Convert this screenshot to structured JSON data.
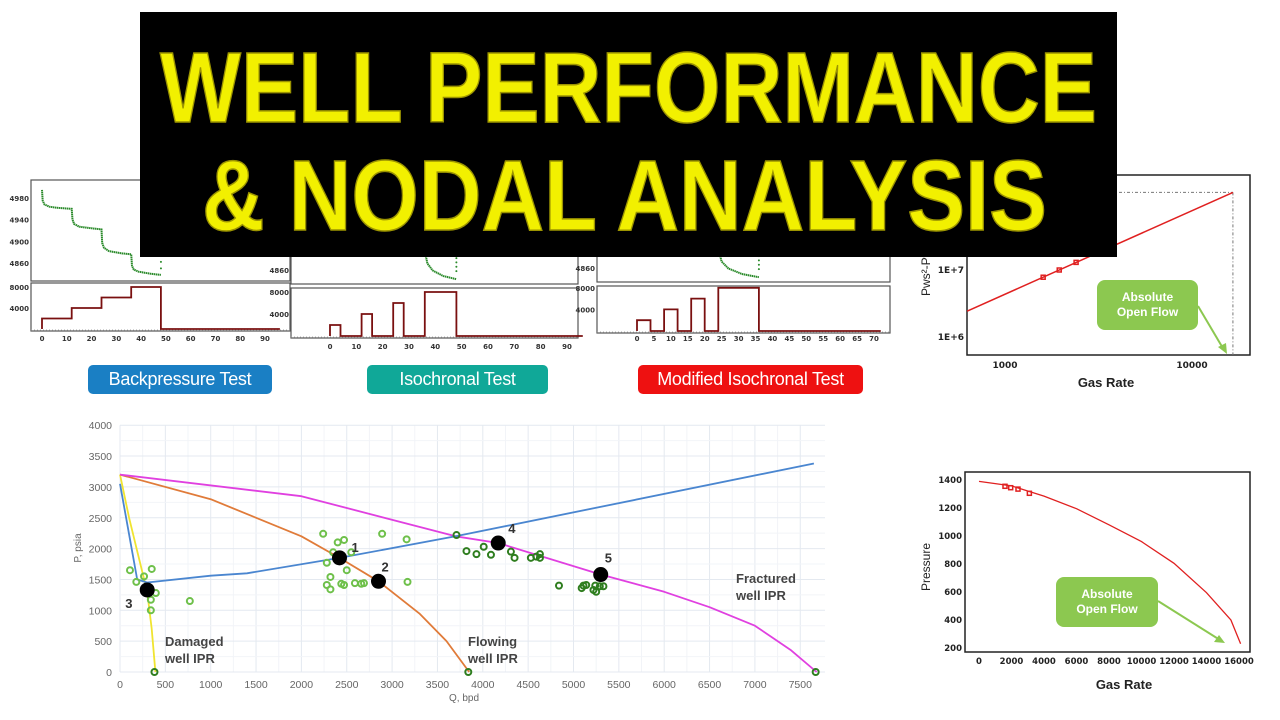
{
  "title": {
    "line1": "WELL PERFORMANCE",
    "line2": "& NODAL ANALYSIS",
    "text_color": "#f2f000"
  },
  "tests": [
    {
      "label": "Backpressure Test",
      "color": "#1a7fc4"
    },
    {
      "label": "Isochronal Test",
      "color": "#10a898"
    },
    {
      "label": "Modified Isochronal Test",
      "color": "#ee1111"
    }
  ],
  "callouts": {
    "log_chart": "Absolute Open Flow",
    "pressure_chart": "Absolute Open Flow"
  },
  "chart_data": [
    {
      "id": "backpressure",
      "type": "line",
      "x_ticks": [
        "0",
        "10",
        "20",
        "30",
        "40",
        "50",
        "60",
        "70",
        "80",
        "90"
      ],
      "pressure_ticks": [
        "4980",
        "4940",
        "4900",
        "4860"
      ],
      "rate_ticks": [
        "8000",
        "4000"
      ],
      "rate_steps": [
        [
          0,
          12,
          2000
        ],
        [
          12,
          24,
          4000
        ],
        [
          24,
          36,
          6000
        ],
        [
          36,
          48,
          8000
        ],
        [
          48,
          96,
          0
        ]
      ],
      "pressure_curve": [
        [
          0,
          4995
        ],
        [
          0.3,
          4975
        ],
        [
          1,
          4968
        ],
        [
          3,
          4964
        ],
        [
          6,
          4962
        ],
        [
          12,
          4960
        ],
        [
          12.3,
          4940
        ],
        [
          13,
          4932
        ],
        [
          15,
          4927
        ],
        [
          20,
          4924
        ],
        [
          24,
          4922
        ],
        [
          24.3,
          4897
        ],
        [
          25,
          4888
        ],
        [
          27,
          4882
        ],
        [
          32,
          4878
        ],
        [
          36,
          4876
        ],
        [
          36.3,
          4855
        ],
        [
          37,
          4848
        ],
        [
          39,
          4844
        ],
        [
          44,
          4840
        ],
        [
          48,
          4838
        ]
      ],
      "buildup_dots": {
        "t": 48,
        "p": [
          4876,
          4862,
          4850
        ]
      }
    },
    {
      "id": "isochronal",
      "type": "line",
      "x_ticks": [
        "0",
        "10",
        "20",
        "30",
        "40",
        "50",
        "60",
        "70",
        "80",
        "90"
      ],
      "pressure_ticks": [
        "4860"
      ],
      "rate_ticks": [
        "8000",
        "4000"
      ],
      "rate_steps": [
        [
          0,
          4,
          2000
        ],
        [
          4,
          12,
          0
        ],
        [
          12,
          16,
          4000
        ],
        [
          16,
          24,
          0
        ],
        [
          24,
          28,
          6000
        ],
        [
          28,
          36,
          0
        ],
        [
          36,
          48,
          8000
        ],
        [
          48,
          96,
          0
        ]
      ],
      "pressure_curve": [
        [
          36,
          4930
        ],
        [
          36.3,
          4888
        ],
        [
          37,
          4872
        ],
        [
          39,
          4859
        ],
        [
          43,
          4849
        ],
        [
          48,
          4843
        ]
      ],
      "buildup_dots": {
        "t": 48,
        "p": [
          4882,
          4874,
          4866,
          4858
        ]
      }
    },
    {
      "id": "modified-isochronal",
      "type": "line",
      "x_ticks": [
        "0",
        "5",
        "10",
        "15",
        "20",
        "25",
        "30",
        "35",
        "40",
        "45",
        "50",
        "55",
        "60",
        "65",
        "70"
      ],
      "pressure_ticks": [
        "4860"
      ],
      "rate_ticks": [
        "8000",
        "4000"
      ],
      "rate_steps": [
        [
          0,
          4,
          2000
        ],
        [
          4,
          8,
          0
        ],
        [
          8,
          12,
          4000
        ],
        [
          12,
          16,
          0
        ],
        [
          16,
          20,
          6000
        ],
        [
          20,
          24,
          0
        ],
        [
          24,
          36,
          8000
        ],
        [
          36,
          72,
          0
        ]
      ],
      "pressure_curve": [
        [
          24,
          4930
        ],
        [
          24.3,
          4888
        ],
        [
          25,
          4872
        ],
        [
          27,
          4859
        ],
        [
          31,
          4849
        ],
        [
          36,
          4843
        ]
      ],
      "buildup_dots": {
        "t": 36,
        "p": [
          4882,
          4874,
          4866,
          4858
        ]
      }
    },
    {
      "id": "ipr",
      "type": "line",
      "xlabel": "Q, bpd",
      "ylabel": "P, psia",
      "xlim": [
        0,
        7500
      ],
      "ylim": [
        0,
        4000
      ],
      "grid": true,
      "x_ticks": [
        "0",
        "500",
        "1000",
        "1500",
        "2000",
        "2500",
        "3000",
        "3500",
        "4000",
        "4500",
        "5000",
        "5500",
        "6000",
        "6500",
        "7000",
        "7500"
      ],
      "y_ticks": [
        "0",
        "500",
        "1000",
        "1500",
        "2000",
        "2500",
        "3000",
        "3500",
        "4000"
      ],
      "series": [
        {
          "label": "Damaged\nwell IPR",
          "label_lines": [
            "Damaged",
            "well IPR"
          ],
          "color": "#f0e430",
          "points": [
            [
              0,
              3200
            ],
            [
              100,
              2500
            ],
            [
              200,
              1900
            ],
            [
              300,
              1300
            ],
            [
              350,
              700
            ],
            [
              390,
              0
            ]
          ]
        },
        {
          "label_lines": [
            "Flowing",
            "well IPR"
          ],
          "color": "#e07b39",
          "points": [
            [
              0,
              3200
            ],
            [
              1000,
              2800
            ],
            [
              2000,
              2200
            ],
            [
              2420,
              1850
            ],
            [
              2850,
              1470
            ],
            [
              3300,
              950
            ],
            [
              3600,
              500
            ],
            [
              3850,
              0
            ]
          ]
        },
        {
          "label_lines": [
            "Fractured",
            "well IPR"
          ],
          "color": "#e040e0",
          "points": [
            [
              0,
              3200
            ],
            [
              2000,
              2850
            ],
            [
              3700,
              2200
            ],
            [
              4170,
              2090
            ],
            [
              5300,
              1580
            ],
            [
              6000,
              1300
            ],
            [
              6500,
              1050
            ],
            [
              7000,
              750
            ],
            [
              7400,
              350
            ],
            [
              7680,
              0
            ]
          ]
        },
        {
          "color": "#4a86d0",
          "points": [
            [
              0,
              3050
            ],
            [
              190,
              1500
            ],
            [
              300,
              1450
            ],
            [
              1000,
              1560
            ],
            [
              1400,
              1600
            ],
            [
              2420,
              1850
            ],
            [
              3700,
              2200
            ],
            [
              7650,
              3380
            ]
          ]
        }
      ],
      "operating_points": [
        {
          "label": "1",
          "q": 2420,
          "p": 1850
        },
        {
          "label": "2",
          "q": 2850,
          "p": 1470
        },
        {
          "label": "3",
          "q": 300,
          "p": 1330
        },
        {
          "label": "4",
          "q": 4170,
          "p": 2090
        },
        {
          "label": "5",
          "q": 5300,
          "p": 1580
        }
      ],
      "measured_light": {
        "color": "#6ec04a",
        "points": [
          [
            110,
            1650
          ],
          [
            180,
            1460
          ],
          [
            265,
            1550
          ],
          [
            350,
            1670
          ],
          [
            395,
            1280
          ],
          [
            340,
            1170
          ],
          [
            340,
            1000
          ],
          [
            770,
            1150
          ],
          [
            2240,
            2240
          ],
          [
            2400,
            2100
          ],
          [
            2470,
            2140
          ],
          [
            2350,
            1940
          ],
          [
            2550,
            1940
          ],
          [
            2280,
            1770
          ],
          [
            2500,
            1650
          ],
          [
            2320,
            1540
          ],
          [
            2280,
            1410
          ],
          [
            2320,
            1340
          ],
          [
            2440,
            1430
          ],
          [
            2470,
            1410
          ],
          [
            2590,
            1440
          ],
          [
            2660,
            1430
          ],
          [
            2690,
            1440
          ],
          [
            2890,
            2240
          ],
          [
            3160,
            2150
          ],
          [
            3170,
            1460
          ]
        ]
      },
      "measured_dark": {
        "color": "#2e7d1e",
        "points": [
          [
            380,
            0
          ],
          [
            3710,
            2220
          ],
          [
            3820,
            1960
          ],
          [
            3930,
            1910
          ],
          [
            4010,
            2030
          ],
          [
            4090,
            1900
          ],
          [
            4310,
            1950
          ],
          [
            4350,
            1850
          ],
          [
            4530,
            1850
          ],
          [
            4590,
            1870
          ],
          [
            4630,
            1910
          ],
          [
            4630,
            1850
          ],
          [
            4840,
            1400
          ],
          [
            5090,
            1360
          ],
          [
            5110,
            1400
          ],
          [
            5140,
            1410
          ],
          [
            5240,
            1400
          ],
          [
            5220,
            1330
          ],
          [
            5250,
            1300
          ],
          [
            5290,
            1390
          ],
          [
            5330,
            1390
          ],
          [
            3840,
            0
          ],
          [
            7670,
            0
          ]
        ]
      }
    },
    {
      "id": "log-deliverability",
      "type": "line",
      "xlabel": "Gas Rate",
      "ylabel": "Pws²-Pw",
      "x_scale": "log",
      "y_scale": "log",
      "x_ticks": [
        {
          "value": 1000,
          "label": "1000"
        },
        {
          "value": 10000,
          "label": "10000"
        }
      ],
      "y_ticks": [
        {
          "value": 10000000,
          "label": "1E+7"
        },
        {
          "value": 1000000,
          "label": "1E+6"
        }
      ],
      "line": {
        "color": "#e02020",
        "q_range": [
          627,
          16550
        ],
        "slope_n": 1.247,
        "ref_q": 1950,
        "ref_value": 10000000
      },
      "points": [
        [
          1600,
          7800000
        ],
        [
          1950,
          10000000
        ],
        [
          2400,
          13000000
        ]
      ],
      "aof": 16550
    },
    {
      "id": "pressure-rate",
      "type": "line",
      "xlabel": "Gas Rate",
      "ylabel": "Pressure",
      "xlim": [
        0,
        16000
      ],
      "ylim": [
        200,
        1400
      ],
      "x_ticks": [
        "0",
        "2000",
        "4000",
        "6000",
        "8000",
        "10000",
        "12000",
        "14000",
        "16000"
      ],
      "y_ticks": [
        "1400",
        "1200",
        "1000",
        "800",
        "600",
        "400",
        "200"
      ],
      "curve": {
        "color": "#e02020",
        "points": [
          [
            0,
            1390
          ],
          [
            2000,
            1358
          ],
          [
            4000,
            1285
          ],
          [
            6000,
            1195
          ],
          [
            8000,
            1080
          ],
          [
            10000,
            960
          ],
          [
            12000,
            805
          ],
          [
            14000,
            595
          ],
          [
            15500,
            400
          ],
          [
            16100,
            230
          ]
        ]
      },
      "points": [
        [
          1600,
          1355
        ],
        [
          1950,
          1345
        ],
        [
          2400,
          1335
        ],
        [
          3100,
          1305
        ]
      ]
    }
  ]
}
